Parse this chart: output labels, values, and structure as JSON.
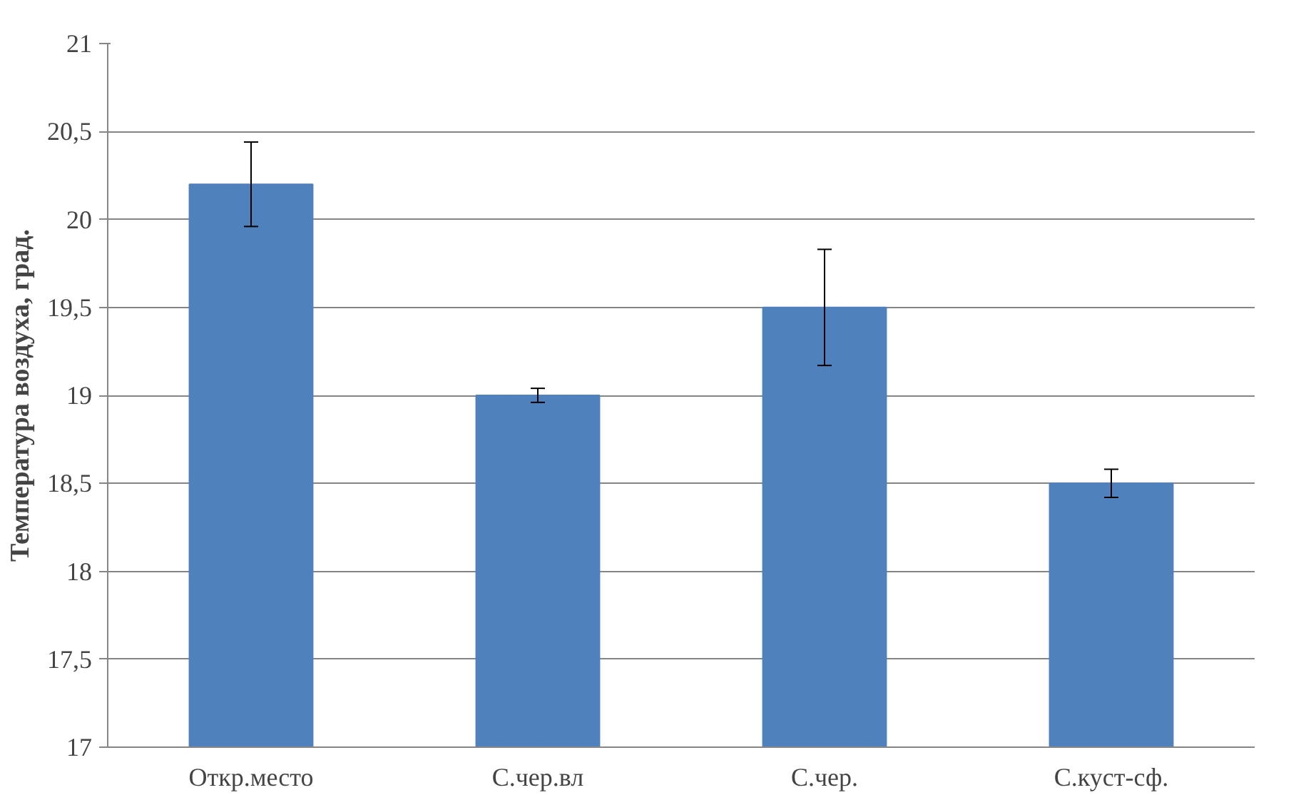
{
  "chart_data": {
    "type": "bar",
    "ylabel": "Температура воздуха, град.",
    "categories": [
      "Откр.место",
      "С.чер.вл",
      "С.чер.",
      "С.куст-сф."
    ],
    "values": [
      20.2,
      19.0,
      19.5,
      18.5
    ],
    "color": "#4f81bd",
    "errors": [
      0.24,
      0.04,
      0.33,
      0.08
    ],
    "ylim": [
      17,
      21
    ],
    "yticks": [
      17,
      {
        "value": 17.5,
        "label": "17,5"
      },
      18,
      {
        "value": 18.5,
        "label": "18,5"
      },
      19,
      {
        "value": 19.5,
        "label": "19,5"
      },
      20,
      {
        "value": 20.5,
        "label": "20,5"
      },
      21
    ],
    "grid": "y"
  }
}
